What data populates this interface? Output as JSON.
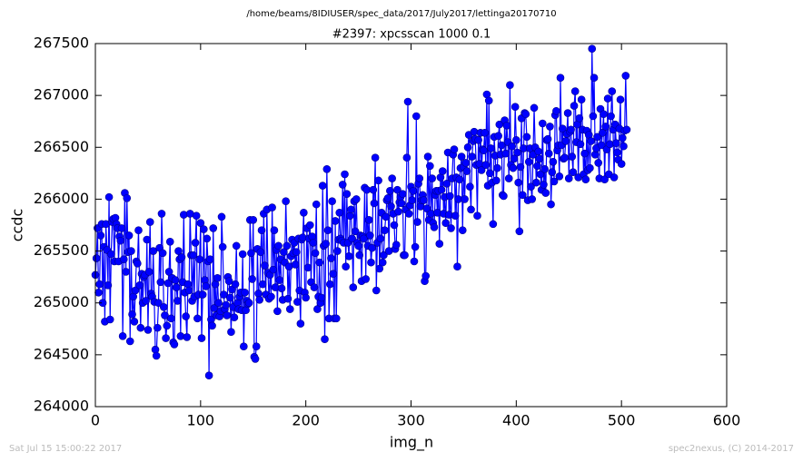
{
  "chart_data": {
    "type": "line",
    "title": "#2397: xpcsscan 1000 0.1",
    "subtitle": "/home/beams/8IDIUSER/spec_data/2017/July2017/lettinga20170710",
    "x_label": "img_n",
    "y_label": "ccdc",
    "annotations": [
      "Sat Jul 15 15:00:22 2017",
      "spec2nexus, (C) 2014-2017"
    ],
    "color": "#0000ff",
    "marker": "circle",
    "grid": false,
    "xlim": [
      0,
      600
    ],
    "xticks": [
      0,
      100,
      200,
      300,
      400,
      500,
      600
    ],
    "ylim": [
      264000,
      267500
    ],
    "yticks": [
      264000,
      264500,
      265000,
      265500,
      266000,
      266500,
      267000,
      267500
    ],
    "x": [
      0,
      1,
      2,
      3,
      4,
      5,
      6,
      7,
      8,
      9,
      10,
      11,
      12,
      13,
      14,
      15,
      16,
      17,
      18,
      19,
      20,
      21,
      22,
      23,
      24,
      25,
      26,
      27,
      28,
      29,
      30,
      31,
      32,
      33,
      34,
      35,
      36,
      37,
      38,
      39,
      40,
      41,
      42,
      43,
      44,
      45,
      46,
      47,
      48,
      49,
      50,
      51,
      52,
      53,
      54,
      55,
      56,
      57,
      58,
      59,
      60,
      61,
      62,
      63,
      64,
      65,
      66,
      67,
      68,
      69,
      70,
      71,
      72,
      73,
      74,
      75,
      76,
      77,
      78,
      79,
      80,
      81,
      82,
      83,
      84,
      85,
      86,
      87,
      88,
      89,
      90,
      91,
      92,
      93,
      94,
      95,
      96,
      97,
      98,
      99,
      100,
      101,
      102,
      103,
      104,
      105,
      106,
      107,
      108,
      109,
      110,
      111,
      112,
      113,
      114,
      115,
      116,
      117,
      118,
      119,
      120,
      121,
      122,
      123,
      124,
      125,
      126,
      127,
      128,
      129,
      130,
      131,
      132,
      133,
      134,
      135,
      136,
      137,
      138,
      139,
      140,
      141,
      142,
      143,
      144,
      145,
      146,
      147,
      148,
      149,
      150,
      151,
      152,
      153,
      154,
      155,
      156,
      157,
      158,
      159,
      160,
      161,
      162,
      163,
      164,
      165,
      166,
      167,
      168,
      169,
      170,
      171,
      172,
      173,
      174,
      175,
      176,
      177,
      178,
      179,
      180,
      181,
      182,
      183,
      184,
      185,
      186,
      187,
      188,
      189,
      190,
      191,
      192,
      193,
      194,
      195,
      196,
      197,
      198,
      199,
      200,
      201,
      202,
      203,
      204,
      205,
      206,
      207,
      208,
      209,
      210,
      211,
      212,
      213,
      214,
      215,
      216,
      217,
      218,
      219,
      220,
      221,
      222,
      223,
      224,
      225,
      226,
      227,
      228,
      229,
      230,
      231,
      232,
      233,
      234,
      235,
      236,
      237,
      238,
      239,
      240,
      241,
      242,
      243,
      244,
      245,
      246,
      247,
      248,
      249,
      250,
      251,
      252,
      253,
      254,
      255,
      256,
      257,
      258,
      259,
      260,
      261,
      262,
      263,
      264,
      265,
      266,
      267,
      268,
      269,
      270,
      271,
      272,
      273,
      274,
      275,
      276,
      277,
      278,
      279,
      280,
      281,
      282,
      283,
      284,
      285,
      286,
      287,
      288,
      289,
      290,
      291,
      292,
      293,
      294,
      295,
      296,
      297,
      298,
      299,
      300,
      301,
      302,
      303,
      304,
      305,
      306,
      307,
      308,
      309,
      310,
      311,
      312,
      313,
      314,
      315,
      316,
      317,
      318,
      319,
      320,
      321,
      322,
      323,
      324,
      325,
      326,
      327,
      328,
      329,
      330,
      331,
      332,
      333,
      334,
      335,
      336,
      337,
      338,
      339,
      340,
      341,
      342,
      343,
      344,
      345,
      346,
      347,
      348,
      349,
      350,
      351,
      352,
      353,
      354,
      355,
      356,
      357,
      358,
      359,
      360,
      361,
      362,
      363,
      364,
      365,
      366,
      367,
      368,
      369,
      370,
      371,
      372,
      373,
      374,
      375,
      376,
      377,
      378,
      379,
      380,
      381,
      382,
      383,
      384,
      385,
      386,
      387,
      388,
      389,
      390,
      391,
      392,
      393,
      394,
      395,
      396,
      397,
      398,
      399,
      400,
      401,
      402,
      403,
      404,
      405,
      406,
      407,
      408,
      409,
      410,
      411,
      412,
      413,
      414,
      415,
      416,
      417,
      418,
      419,
      420,
      421,
      422,
      423,
      424,
      425,
      426,
      427,
      428,
      429,
      430,
      431,
      432,
      433,
      434,
      435,
      436,
      437,
      438,
      439,
      440,
      441,
      442,
      443,
      444,
      445,
      446,
      447,
      448,
      449,
      450,
      451,
      452,
      453,
      454,
      455,
      456,
      457,
      458,
      459,
      460,
      461,
      462,
      463,
      464,
      465,
      466,
      467,
      468,
      469,
      470,
      471,
      472,
      473,
      474,
      475,
      476,
      477,
      478,
      479,
      480,
      481,
      482,
      483,
      484,
      485,
      486,
      487,
      488,
      489,
      490,
      491,
      492,
      493,
      494,
      495,
      496,
      497,
      498,
      499,
      500,
      501,
      502,
      503,
      504,
      505
    ],
    "values": [
      265270,
      265430,
      265720,
      265100,
      265180,
      265650,
      265760,
      265000,
      265540,
      264820,
      265760,
      265510,
      265170,
      266020,
      264840,
      265470,
      265780,
      265810,
      265400,
      265820,
      265760,
      265720,
      265400,
      265640,
      265600,
      265720,
      264680,
      265420,
      266060,
      265300,
      266010,
      265490,
      265650,
      264630,
      265500,
      264890,
      265060,
      264820,
      265120,
      265400,
      265380,
      265700,
      265170,
      264760,
      265280,
      265000,
      265250,
      265270,
      265020,
      265610,
      264740,
      265300,
      265780,
      265090,
      265060,
      265500,
      265010,
      264550,
      264490,
      264760,
      265000,
      265530,
      265200,
      265860,
      265480,
      264960,
      264880,
      264660,
      264780,
      265190,
      265300,
      265590,
      264850,
      265240,
      264620,
      264600,
      265220,
      265150,
      265020,
      265500,
      265420,
      264680,
      265440,
      265200,
      265850,
      265100,
      264870,
      264670,
      265180,
      265120,
      265860,
      265460,
      265020,
      265460,
      265060,
      265580,
      265840,
      264850,
      265080,
      265420,
      265770,
      264660,
      265080,
      265710,
      265220,
      265160,
      265620,
      265400,
      264300,
      265420,
      264840,
      264780,
      265720,
      264950,
      265180,
      264880,
      265240,
      265000,
      264870,
      264920,
      265830,
      265540,
      265080,
      264940,
      264980,
      264880,
      265250,
      265210,
      265050,
      264720,
      265130,
      264960,
      264860,
      265180,
      265550,
      265000,
      264940,
      265060,
      265100,
      264930,
      265470,
      264580,
      265100,
      264930,
      265020,
      264990,
      265000,
      265800,
      265480,
      265230,
      265800,
      264480,
      264460,
      264580,
      265520,
      265090,
      265030,
      265490,
      265700,
      265180,
      265860,
      265360,
      265080,
      265900,
      265290,
      265040,
      265270,
      265060,
      265920,
      265320,
      265700,
      265150,
      265510,
      264920,
      265550,
      265220,
      265420,
      265140,
      265030,
      265490,
      265390,
      265980,
      265550,
      265040,
      265350,
      264940,
      265450,
      265610,
      265480,
      265580,
      265370,
      265490,
      265010,
      265620,
      265120,
      264800,
      265610,
      265630,
      265870,
      265100,
      265050,
      265720,
      265340,
      265620,
      265750,
      265200,
      265640,
      265580,
      265150,
      265480,
      265950,
      264940,
      265060,
      265390,
      265000,
      265050,
      266130,
      265550,
      264650,
      265570,
      266290,
      265700,
      264850,
      265180,
      265430,
      265980,
      265280,
      264850,
      265790,
      264850,
      265500,
      265610,
      265870,
      265620,
      265600,
      266140,
      265580,
      266240,
      265350,
      266050,
      265580,
      265450,
      265840,
      265900,
      265620,
      265150,
      265980,
      265690,
      266000,
      265580,
      265550,
      265460,
      265650,
      265210,
      265640,
      265620,
      266110,
      265230,
      266090,
      265550,
      265800,
      265650,
      265390,
      265530,
      266090,
      265960,
      266400,
      265120,
      265580,
      266180,
      265330,
      265620,
      265870,
      265390,
      265460,
      265700,
      265830,
      265990,
      266010,
      265500,
      266080,
      265930,
      266200,
      265860,
      265750,
      265520,
      265560,
      266090,
      265880,
      265970,
      266020,
      265960,
      266050,
      265460,
      265460,
      265900,
      266400,
      266940,
      265860,
      265940,
      266120,
      265990,
      266080,
      265400,
      265540,
      266800,
      265780,
      266150,
      266200,
      265930,
      265990,
      266040,
      265990,
      265210,
      265260,
      265910,
      266410,
      265800,
      266320,
      265860,
      266200,
      265770,
      265730,
      266040,
      266080,
      265870,
      266080,
      265570,
      266210,
      266090,
      266270,
      265860,
      266020,
      265770,
      266150,
      266450,
      265850,
      266030,
      265720,
      266200,
      266430,
      266480,
      265840,
      266210,
      265350,
      266000,
      266190,
      266300,
      266410,
      265700,
      266310,
      266000,
      266350,
      266270,
      266500,
      266620,
      266120,
      265900,
      266410,
      266560,
      266650,
      266580,
      266330,
      265840,
      266570,
      266340,
      266640,
      266280,
      266480,
      266470,
      266640,
      266330,
      267010,
      266130,
      266950,
      266250,
      266490,
      266160,
      265760,
      266600,
      266420,
      266180,
      266300,
      266610,
      266720,
      266430,
      266520,
      266040,
      266030,
      266760,
      266440,
      266710,
      266550,
      266200,
      267100,
      266330,
      266510,
      266300,
      266390,
      266890,
      266570,
      266450,
      266160,
      265690,
      266310,
      266780,
      266040,
      266490,
      266830,
      266820,
      266600,
      265990,
      266360,
      266490,
      266120,
      266000,
      266430,
      266880,
      266500,
      266160,
      266320,
      266460,
      266390,
      266240,
      266090,
      266730,
      266140,
      266290,
      266060,
      266570,
      266580,
      266440,
      266700,
      265950,
      266260,
      266360,
      266170,
      266810,
      266850,
      266470,
      266520,
      266220,
      267170,
      266520,
      266680,
      266390,
      266400,
      266560,
      266630,
      266830,
      266200,
      266650,
      266670,
      266410,
      266260,
      266900,
      267040,
      266550,
      266720,
      266210,
      266780,
      266530,
      266960,
      266670,
      266240,
      266440,
      266190,
      266660,
      266280,
      266620,
      266300,
      266560,
      267450,
      266800,
      267170,
      266430,
      266490,
      266600,
      266350,
      266200,
      266870,
      266520,
      266640,
      266820,
      266190,
      266700,
      266480,
      266970,
      266240,
      266530,
      266800,
      267040,
      266670,
      266210,
      266720,
      266540,
      266450,
      266380,
      266680,
      266960,
      266340,
      266590,
      266510,
      266660,
      267190,
      266670
    ]
  }
}
